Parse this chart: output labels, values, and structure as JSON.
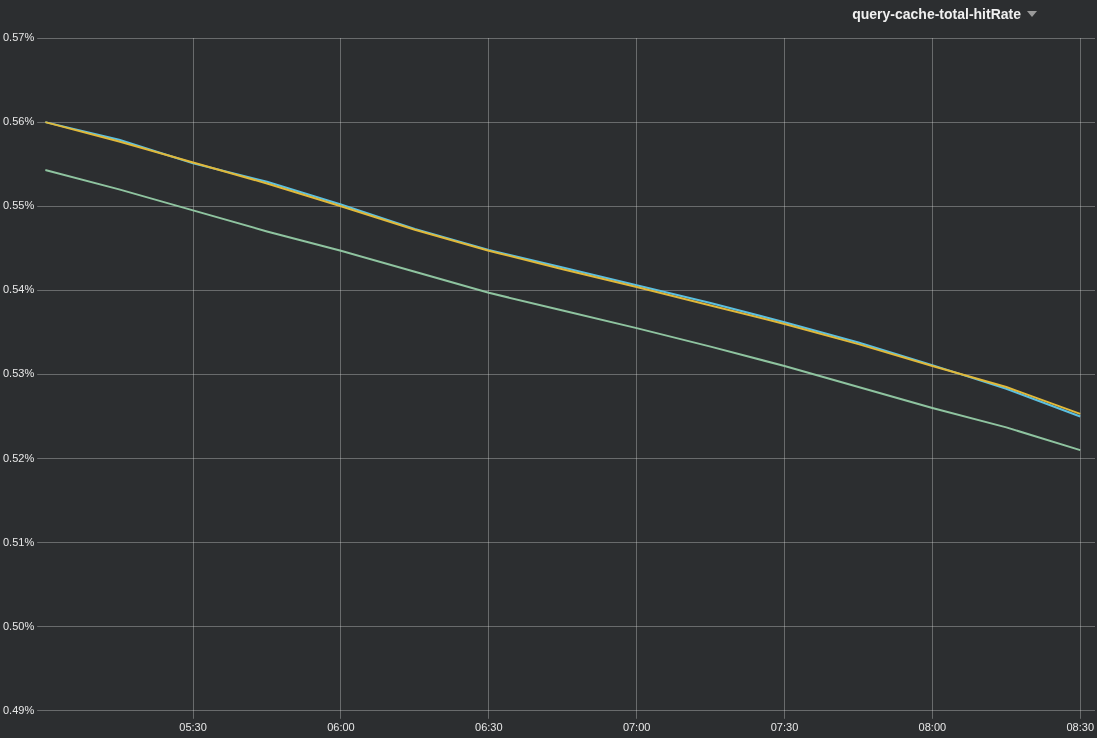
{
  "chart_data": {
    "type": "line",
    "title": "query-cache-total-hitRate",
    "x": [
      5.0,
      5.25,
      5.5,
      5.75,
      6.0,
      6.25,
      6.5,
      6.75,
      7.0,
      7.25,
      7.5,
      7.75,
      8.0,
      8.25,
      8.5
    ],
    "series": [
      {
        "color": "#e0b83a",
        "values": [
          0.56,
          0.5577,
          0.5552,
          0.5527,
          0.55,
          0.5472,
          0.5447,
          0.5425,
          0.5404,
          0.5382,
          0.536,
          0.5336,
          0.531,
          0.5285,
          0.5253
        ]
      },
      {
        "color": "#5bbfe0",
        "values": [
          0.56,
          0.5579,
          0.5551,
          0.5529,
          0.5502,
          0.5473,
          0.5448,
          0.5427,
          0.5406,
          0.5385,
          0.5362,
          0.5338,
          0.5311,
          0.5283,
          0.525
        ]
      },
      {
        "color": "#8fc4a0",
        "values": [
          0.5543,
          0.552,
          0.5495,
          0.547,
          0.5447,
          0.5422,
          0.5397,
          0.5376,
          0.5355,
          0.5333,
          0.531,
          0.5285,
          0.526,
          0.5237,
          0.521
        ]
      }
    ],
    "xlim": [
      5.0,
      8.55
    ],
    "xticks": [
      {
        "value": 5.5,
        "label": "05:30"
      },
      {
        "value": 6.0,
        "label": "06:00"
      },
      {
        "value": 6.5,
        "label": "06:30"
      },
      {
        "value": 7.0,
        "label": "07:00"
      },
      {
        "value": 7.5,
        "label": "07:30"
      },
      {
        "value": 8.0,
        "label": "08:00"
      },
      {
        "value": 8.5,
        "label": "08:30"
      }
    ],
    "ylim": [
      0.49,
      0.57
    ],
    "yticks": [
      {
        "value": 0.49,
        "label": "0.49%"
      },
      {
        "value": 0.5,
        "label": "0.50%"
      },
      {
        "value": 0.51,
        "label": "0.51%"
      },
      {
        "value": 0.52,
        "label": "0.52%"
      },
      {
        "value": 0.53,
        "label": "0.53%"
      },
      {
        "value": 0.54,
        "label": "0.54%"
      },
      {
        "value": 0.55,
        "label": "0.55%"
      },
      {
        "value": 0.56,
        "label": "0.56%"
      },
      {
        "value": 0.57,
        "label": "0.57%"
      }
    ],
    "grid": true,
    "legend": false,
    "marker": "none",
    "line_style": "solid"
  }
}
